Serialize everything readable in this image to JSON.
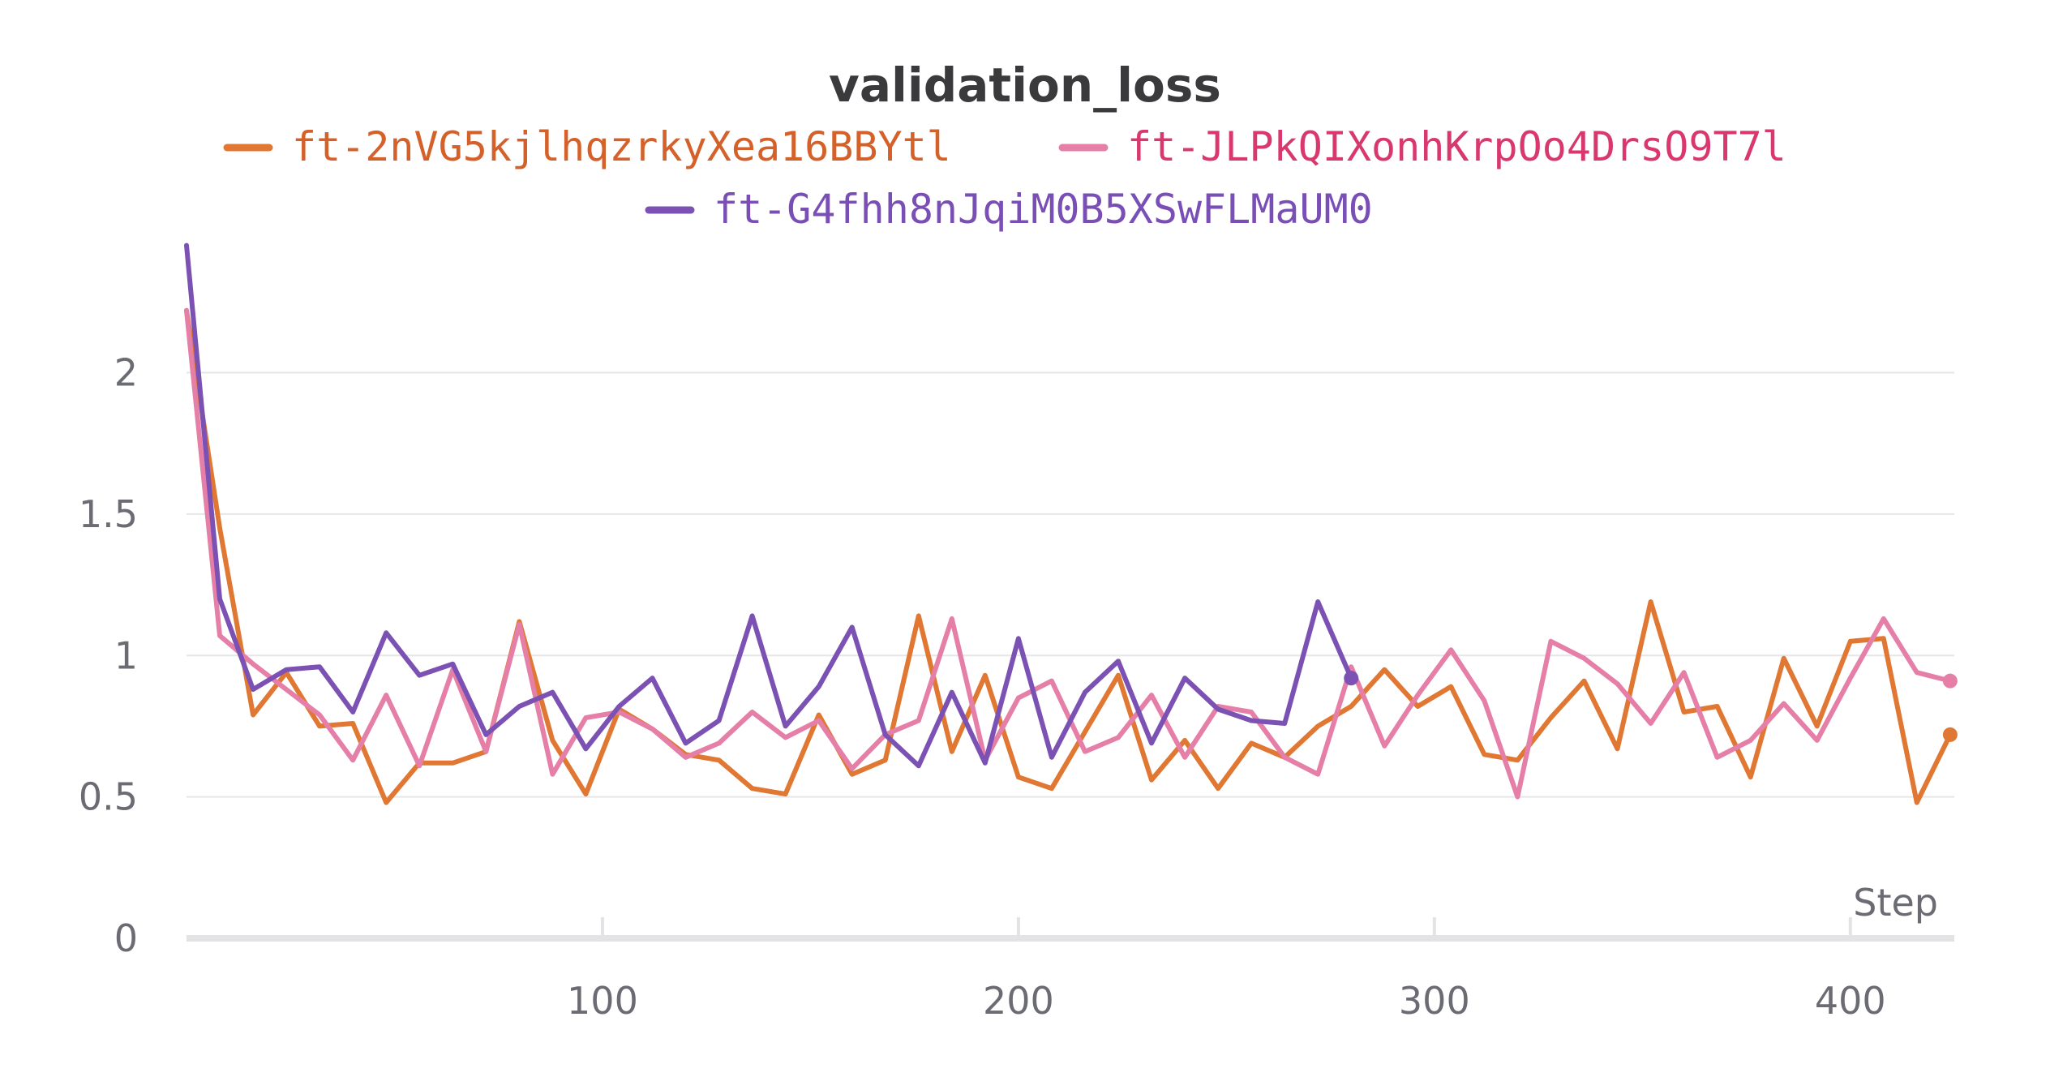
{
  "chart_data": {
    "type": "line",
    "title": "validation_loss",
    "xlabel": "Step",
    "ylabel": "",
    "xlim": [
      0,
      425
    ],
    "ylim": [
      0,
      2.4
    ],
    "xticks": [
      100,
      200,
      300,
      400
    ],
    "xtick_labels": [
      "100",
      "200",
      "300",
      "400"
    ],
    "yticks": [
      0,
      0.5,
      1,
      1.5,
      2
    ],
    "ytick_labels": [
      "0",
      "0.5",
      "1",
      "1.5",
      "2"
    ],
    "grid": "horizontal",
    "legend_position": "top-center",
    "series": [
      {
        "name": "ft-2nVG5kjlhqzrkyXea16BBYtl",
        "color": "#e07733",
        "text_color": "#d4612a",
        "end_marker": true,
        "x": [
          0,
          8,
          16,
          24,
          32,
          40,
          48,
          56,
          64,
          72,
          80,
          88,
          96,
          104,
          112,
          120,
          128,
          136,
          144,
          152,
          160,
          168,
          176,
          184,
          192,
          200,
          208,
          216,
          224,
          232,
          240,
          248,
          256,
          264,
          272,
          280,
          288,
          296,
          304,
          312,
          320,
          328,
          336,
          344,
          352,
          360,
          368,
          376,
          384,
          392,
          400,
          408,
          416,
          424
        ],
        "y": [
          2.22,
          1.45,
          0.79,
          0.94,
          0.75,
          0.76,
          0.48,
          0.62,
          0.62,
          0.66,
          1.12,
          0.7,
          0.51,
          0.81,
          0.74,
          0.65,
          0.63,
          0.53,
          0.51,
          0.79,
          0.58,
          0.63,
          1.14,
          0.66,
          0.93,
          0.57,
          0.53,
          0.73,
          0.93,
          0.56,
          0.7,
          0.53,
          0.69,
          0.64,
          0.75,
          0.82,
          0.95,
          0.82,
          0.89,
          0.65,
          0.63,
          0.78,
          0.91,
          0.67,
          1.19,
          0.8,
          0.82,
          0.57,
          0.99,
          0.75,
          1.05,
          1.06,
          0.48,
          0.72
        ]
      },
      {
        "name": "ft-JLPkQIXonhKrpOo4DrsO9T7l",
        "color": "#e57fa8",
        "text_color": "#d8386e",
        "end_marker": true,
        "x": [
          0,
          8,
          16,
          24,
          32,
          40,
          48,
          56,
          64,
          72,
          80,
          88,
          96,
          104,
          112,
          120,
          128,
          136,
          144,
          152,
          160,
          168,
          176,
          184,
          192,
          200,
          208,
          216,
          224,
          232,
          240,
          248,
          256,
          264,
          272,
          280,
          288,
          296,
          304,
          312,
          320,
          328,
          336,
          344,
          352,
          360,
          368,
          376,
          384,
          392,
          400,
          408,
          416,
          424
        ],
        "y": [
          2.22,
          1.07,
          0.97,
          0.88,
          0.79,
          0.63,
          0.86,
          0.61,
          0.95,
          0.66,
          1.11,
          0.58,
          0.78,
          0.8,
          0.74,
          0.64,
          0.69,
          0.8,
          0.71,
          0.77,
          0.6,
          0.72,
          0.77,
          1.13,
          0.63,
          0.85,
          0.91,
          0.66,
          0.71,
          0.86,
          0.64,
          0.82,
          0.8,
          0.64,
          0.58,
          0.96,
          0.68,
          0.86,
          1.02,
          0.84,
          0.5,
          1.05,
          0.99,
          0.9,
          0.76,
          0.94,
          0.64,
          0.7,
          0.83,
          0.7,
          0.92,
          1.13,
          0.94,
          0.91
        ]
      },
      {
        "name": "ft-G4fhh8nJqiM0B5XSwFLMaUM0",
        "color": "#7b52b3",
        "text_color": "#7a4fb5",
        "end_marker": true,
        "x": [
          0,
          8,
          16,
          24,
          32,
          40,
          48,
          56,
          64,
          72,
          80,
          88,
          96,
          104,
          112,
          120,
          128,
          136,
          144,
          152,
          160,
          168,
          176,
          184,
          192,
          200,
          208,
          216,
          224,
          232,
          240,
          248,
          256,
          264,
          272,
          280
        ],
        "y": [
          2.45,
          1.2,
          0.88,
          0.95,
          0.96,
          0.8,
          1.08,
          0.93,
          0.97,
          0.72,
          0.82,
          0.87,
          0.67,
          0.82,
          0.92,
          0.69,
          0.77,
          1.14,
          0.75,
          0.89,
          1.1,
          0.72,
          0.61,
          0.87,
          0.62,
          1.06,
          0.64,
          0.87,
          0.98,
          0.69,
          0.92,
          0.81,
          0.77,
          0.76,
          1.19,
          0.92
        ]
      }
    ]
  }
}
